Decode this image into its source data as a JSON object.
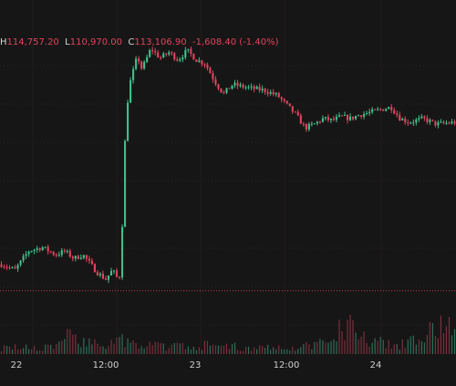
{
  "legend": {
    "high_key": "H",
    "high": "114,757.20",
    "low_key": "L",
    "low": "110,970.00",
    "close_key": "C",
    "close": "113,106.90",
    "change": "-1,608.40",
    "change_pct": "(-1.40%)"
  },
  "colors": {
    "background": "#171616",
    "up": "#3fbf8a",
    "down": "#e0445e",
    "grid": "#2a2424",
    "price_line": "#c23a4c"
  },
  "chart_data": {
    "type": "candlestick",
    "x_tick_labels": [
      "22",
      "12:00",
      "23",
      "12:00",
      "24"
    ],
    "price_line": 111000,
    "ylim": [
      109400,
      118200
    ],
    "grid": true,
    "path": [
      [
        0.0,
        111700
      ],
      [
        0.03,
        111550
      ],
      [
        0.06,
        112050
      ],
      [
        0.09,
        112150
      ],
      [
        0.12,
        111950
      ],
      [
        0.14,
        112050
      ],
      [
        0.16,
        111850
      ],
      [
        0.18,
        111950
      ],
      [
        0.21,
        111500
      ],
      [
        0.23,
        111300
      ],
      [
        0.245,
        111550
      ],
      [
        0.255,
        111350
      ],
      [
        0.262,
        111400
      ],
      [
        0.266,
        112500
      ],
      [
        0.27,
        114000
      ],
      [
        0.275,
        115700
      ],
      [
        0.285,
        116550
      ],
      [
        0.3,
        117200
      ],
      [
        0.31,
        116850
      ],
      [
        0.33,
        117400
      ],
      [
        0.35,
        117150
      ],
      [
        0.37,
        117300
      ],
      [
        0.39,
        117100
      ],
      [
        0.41,
        117350
      ],
      [
        0.43,
        117100
      ],
      [
        0.45,
        117000
      ],
      [
        0.47,
        116550
      ],
      [
        0.49,
        116200
      ],
      [
        0.51,
        116450
      ],
      [
        0.53,
        116400
      ],
      [
        0.55,
        116350
      ],
      [
        0.58,
        116300
      ],
      [
        0.61,
        116150
      ],
      [
        0.63,
        115900
      ],
      [
        0.65,
        115650
      ],
      [
        0.67,
        115300
      ],
      [
        0.69,
        115400
      ],
      [
        0.71,
        115550
      ],
      [
        0.73,
        115500
      ],
      [
        0.75,
        115600
      ],
      [
        0.77,
        115550
      ],
      [
        0.79,
        115650
      ],
      [
        0.81,
        115700
      ],
      [
        0.84,
        115800
      ],
      [
        0.86,
        115850
      ],
      [
        0.88,
        115550
      ],
      [
        0.9,
        115450
      ],
      [
        0.93,
        115550
      ],
      [
        0.96,
        115400
      ],
      [
        1.0,
        115450
      ]
    ],
    "volume_profile": [
      [
        0.0,
        1.2
      ],
      [
        0.1,
        1.1
      ],
      [
        0.16,
        3.5
      ],
      [
        0.22,
        1.5
      ],
      [
        0.25,
        1.8
      ],
      [
        0.27,
        2.5
      ],
      [
        0.3,
        1.6
      ],
      [
        0.4,
        1.4
      ],
      [
        0.45,
        1.6
      ],
      [
        0.55,
        1.2
      ],
      [
        0.65,
        1.3
      ],
      [
        0.7,
        1.8
      ],
      [
        0.75,
        4.5
      ],
      [
        0.77,
        6.5
      ],
      [
        0.79,
        4.0
      ],
      [
        0.85,
        1.6
      ],
      [
        0.93,
        2.5
      ],
      [
        0.97,
        7.0
      ],
      [
        1.0,
        4.0
      ]
    ]
  }
}
